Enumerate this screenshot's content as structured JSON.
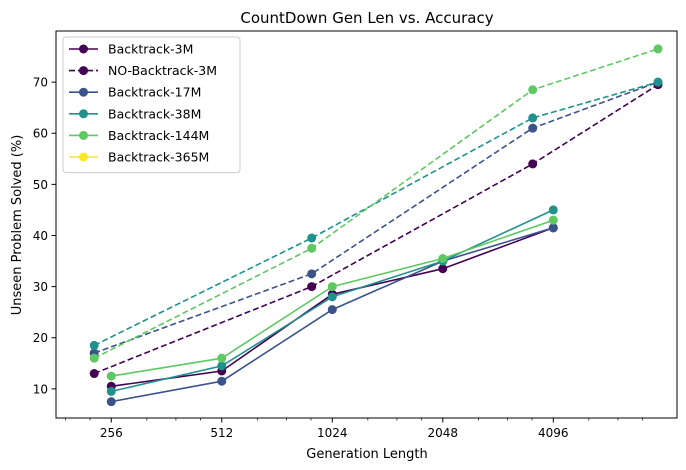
{
  "chart_data": {
    "type": "line",
    "title": "CountDown Gen Len vs. Accuracy",
    "xlabel": "Generation Length",
    "ylabel": "Unseen Problem Solved (%)",
    "xscale": "log2",
    "xlim": [
      181,
      8900
    ],
    "ylim": [
      4.3,
      80.0
    ],
    "xticks": [
      256,
      512,
      1024,
      2048,
      4096
    ],
    "xtick_labels": [
      "256",
      "512",
      "1024",
      "2048",
      "4096"
    ],
    "yticks": [
      10,
      20,
      30,
      40,
      50,
      60,
      70
    ],
    "ytick_labels": [
      "10",
      "20",
      "30",
      "40",
      "50",
      "60",
      "70"
    ],
    "grid": false,
    "legend_position": "upper-left",
    "series": [
      {
        "name": "Backtrack-3M",
        "style": "solid",
        "color": "#440154",
        "x": [
          256,
          512,
          1024,
          2048,
          4096
        ],
        "y": [
          10.5,
          13.5,
          28.5,
          33.5,
          41.5
        ]
      },
      {
        "name": "NO-Backtrack-3M",
        "style": "dashed",
        "color": "#440154",
        "x": [
          230,
          900,
          3600,
          7900
        ],
        "y": [
          13.0,
          30.0,
          54.0,
          69.5
        ]
      },
      {
        "name": "Backtrack-17M",
        "style": "solid",
        "color": "#3b528b",
        "x": [
          256,
          512,
          1024,
          2048,
          4096
        ],
        "y": [
          7.5,
          11.5,
          25.5,
          35.0,
          41.5
        ]
      },
      {
        "name": "",
        "style": "dashed",
        "color": "#3b528b",
        "x": [
          230,
          900,
          3600,
          7900
        ],
        "y": [
          17.0,
          32.5,
          61.0,
          70.0
        ]
      },
      {
        "name": "Backtrack-38M",
        "style": "solid",
        "color": "#21918c",
        "x": [
          256,
          512,
          1024,
          2048,
          4096
        ],
        "y": [
          9.5,
          14.5,
          28.0,
          35.0,
          45.0
        ]
      },
      {
        "name": "",
        "style": "dashed",
        "color": "#21918c",
        "x": [
          230,
          900,
          3600,
          7900
        ],
        "y": [
          18.5,
          39.5,
          63.0,
          70.0
        ]
      },
      {
        "name": "Backtrack-144M",
        "style": "solid",
        "color": "#5ec962",
        "x": [
          256,
          512,
          1024,
          2048,
          4096
        ],
        "y": [
          12.5,
          16.0,
          30.0,
          35.5,
          43.0
        ]
      },
      {
        "name": "",
        "style": "dashed",
        "color": "#5ec962",
        "x": [
          230,
          900,
          3600,
          7900
        ],
        "y": [
          16.0,
          37.5,
          68.5,
          76.5
        ]
      },
      {
        "name": "Backtrack-365M",
        "style": "solid",
        "color": "#fde725",
        "x": [],
        "y": []
      }
    ]
  }
}
